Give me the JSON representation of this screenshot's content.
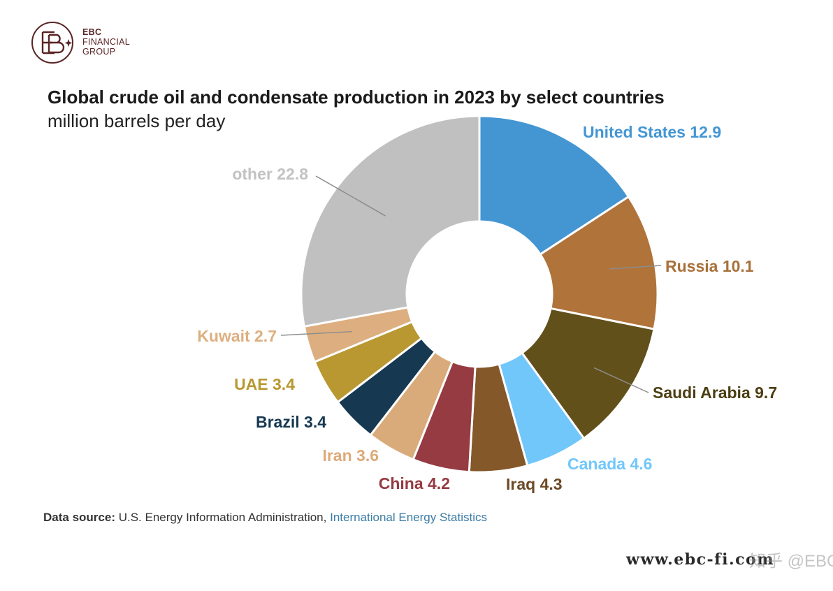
{
  "brand": {
    "line1": "EBC",
    "line2": "FINANCIAL",
    "line3": "GROUP",
    "color": "#5a2526"
  },
  "chart_data": {
    "type": "pie",
    "variant": "donut",
    "title": "Global crude oil and condensate production in 2023 by select countries",
    "subtitle": "million barrels per day",
    "unit": "million barrels per day",
    "categories": [
      "United States",
      "Russia",
      "Saudi Arabia",
      "Canada",
      "Iraq",
      "China",
      "Iran",
      "Brazil",
      "UAE",
      "Kuwait",
      "other"
    ],
    "values": [
      12.9,
      10.1,
      9.7,
      4.6,
      4.3,
      4.2,
      3.6,
      3.4,
      3.4,
      2.7,
      22.8
    ],
    "labels": [
      "United States 12.9",
      "Russia 10.1",
      "Saudi Arabia 9.7",
      "Canada 4.6",
      "Iraq 4.3",
      "China 4.2",
      "Iran 3.6",
      "Brazil 3.4",
      "UAE 3.4",
      "Kuwait 2.7",
      "other 22.8"
    ],
    "colors": [
      "#4496d3",
      "#b0733a",
      "#62501b",
      "#72c7fa",
      "#85582a",
      "#953b41",
      "#d9ab7b",
      "#163850",
      "#b99832",
      "#ddaf80",
      "#c0c0c0"
    ],
    "label_colors": [
      "#4496d3",
      "#a8703a",
      "#4c3e12",
      "#72c7fa",
      "#6b4a26",
      "#953b41",
      "#ddaa7a",
      "#163850",
      "#b99832",
      "#ddaf80",
      "#c2c2c2"
    ]
  },
  "source": {
    "label": "Data source:",
    "text": "U.S. Energy Information Administration,",
    "link": "International Energy Statistics"
  },
  "footer": {
    "website": "www.ebc-fi.com",
    "watermark": "知乎 @EBC"
  }
}
